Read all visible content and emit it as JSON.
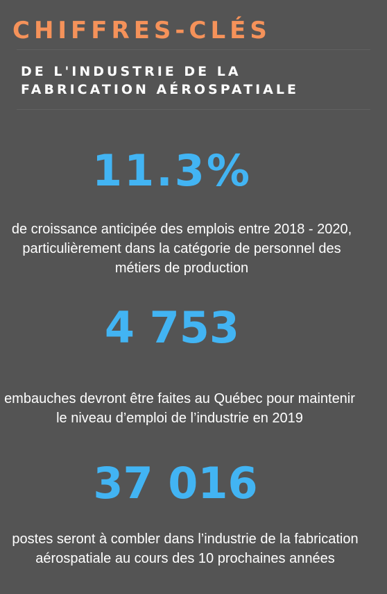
{
  "header": {
    "title": "CHIFFRES-CLÉS",
    "subtitle": "DE L'INDUSTRIE DE LA FABRICATION AÉROSPATIALE"
  },
  "stats": [
    {
      "value": "11.3%",
      "description": "de croissance anticipée des emplois entre 2018 - 2020, particulièrement dans la catégorie de personnel des métiers de production"
    },
    {
      "value": "4 753",
      "description": "embauches devront être faites au Québec pour maintenir le niveau d’emploi de l’industrie en 2019"
    },
    {
      "value": "37 016",
      "description": "postes seront à combler dans l’industrie de la fabrication aérospatiale au cours des 10 prochaines années"
    }
  ],
  "colors": {
    "background": "#545454",
    "title_accent": "#F5925A",
    "stat_value": "#42B4F3",
    "text": "#FFFFFF"
  }
}
